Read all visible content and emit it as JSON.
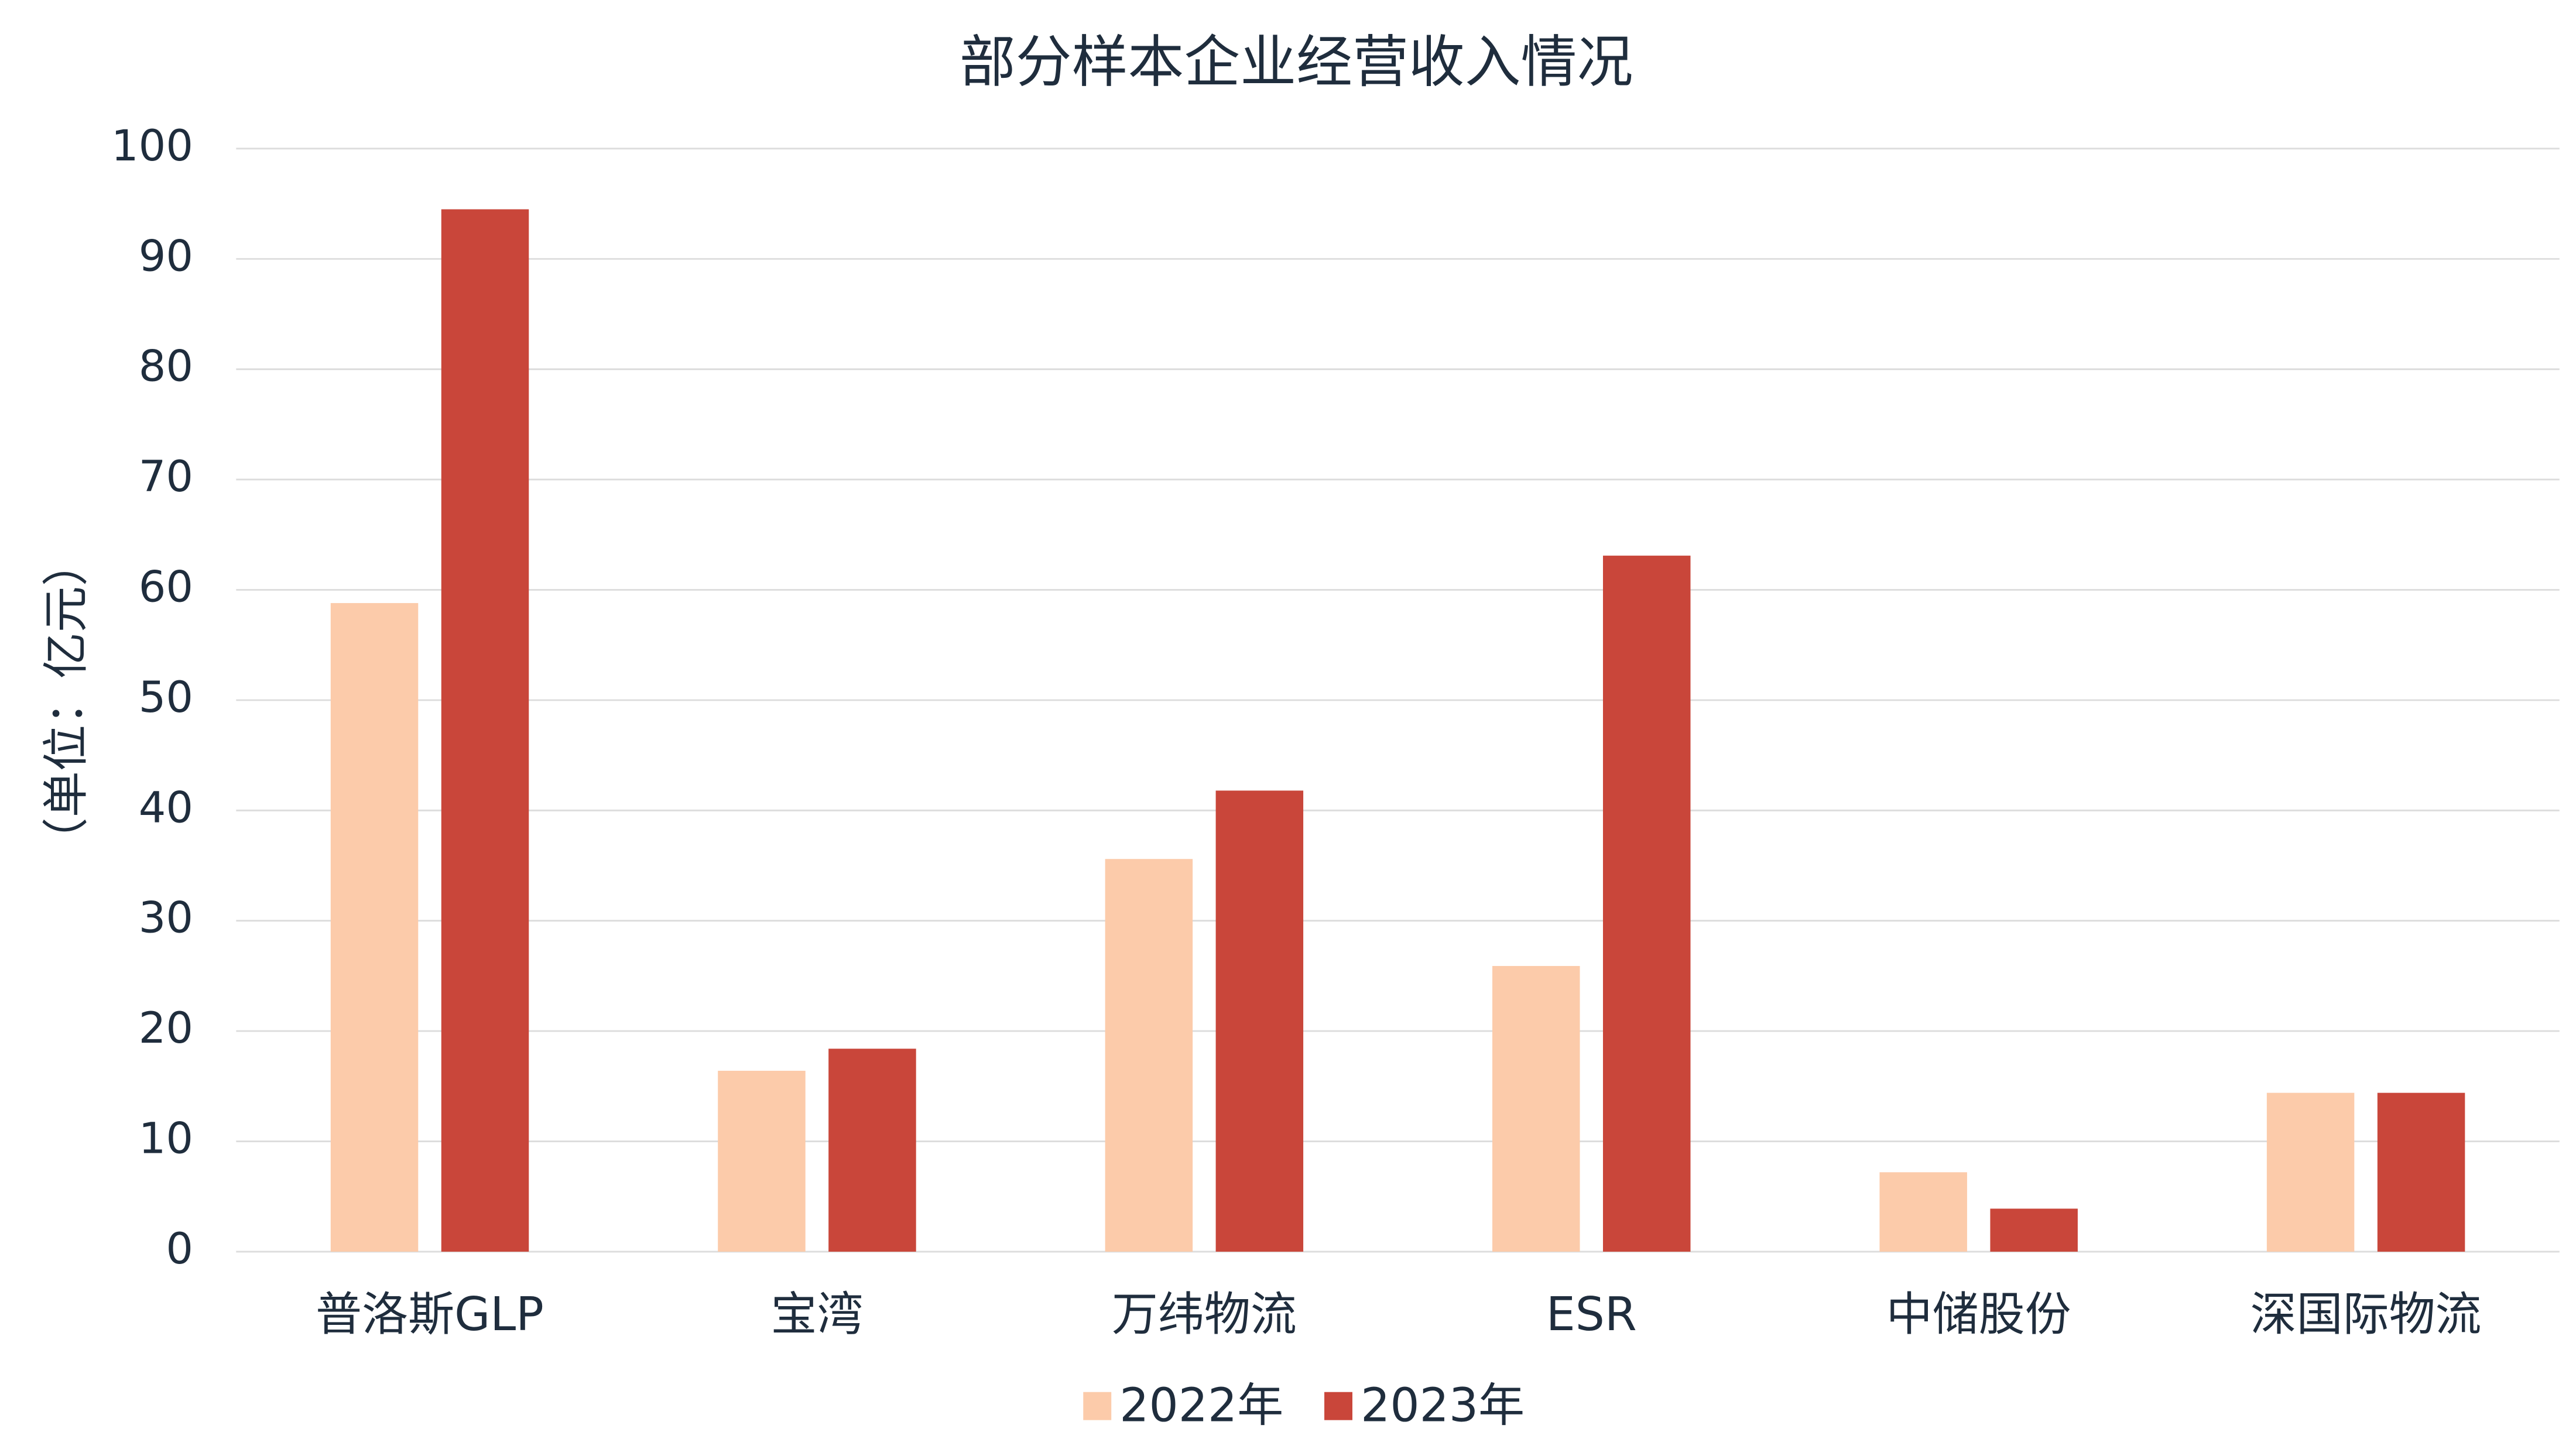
{
  "chart_data": {
    "type": "bar",
    "title": "部分样本企业经营收入情况",
    "y_label": "（单位：亿元）",
    "categories": [
      "普洛斯GLP",
      "宝湾",
      "万纬物流",
      "ESR",
      "中储股份",
      "深国际物流"
    ],
    "series": [
      {
        "name": "2022年",
        "color": "#fccbaa",
        "values": [
          58.8,
          16.4,
          35.6,
          25.9,
          7.2,
          14.4
        ]
      },
      {
        "name": "2023年",
        "color": "#c9463a",
        "values": [
          94.5,
          18.4,
          41.8,
          63.1,
          3.9,
          14.4
        ]
      }
    ],
    "ylim": [
      0,
      100
    ],
    "yticks": [
      0,
      10,
      20,
      30,
      40,
      50,
      60,
      70,
      80,
      90,
      100
    ],
    "grid": true,
    "legend": "bottom"
  }
}
